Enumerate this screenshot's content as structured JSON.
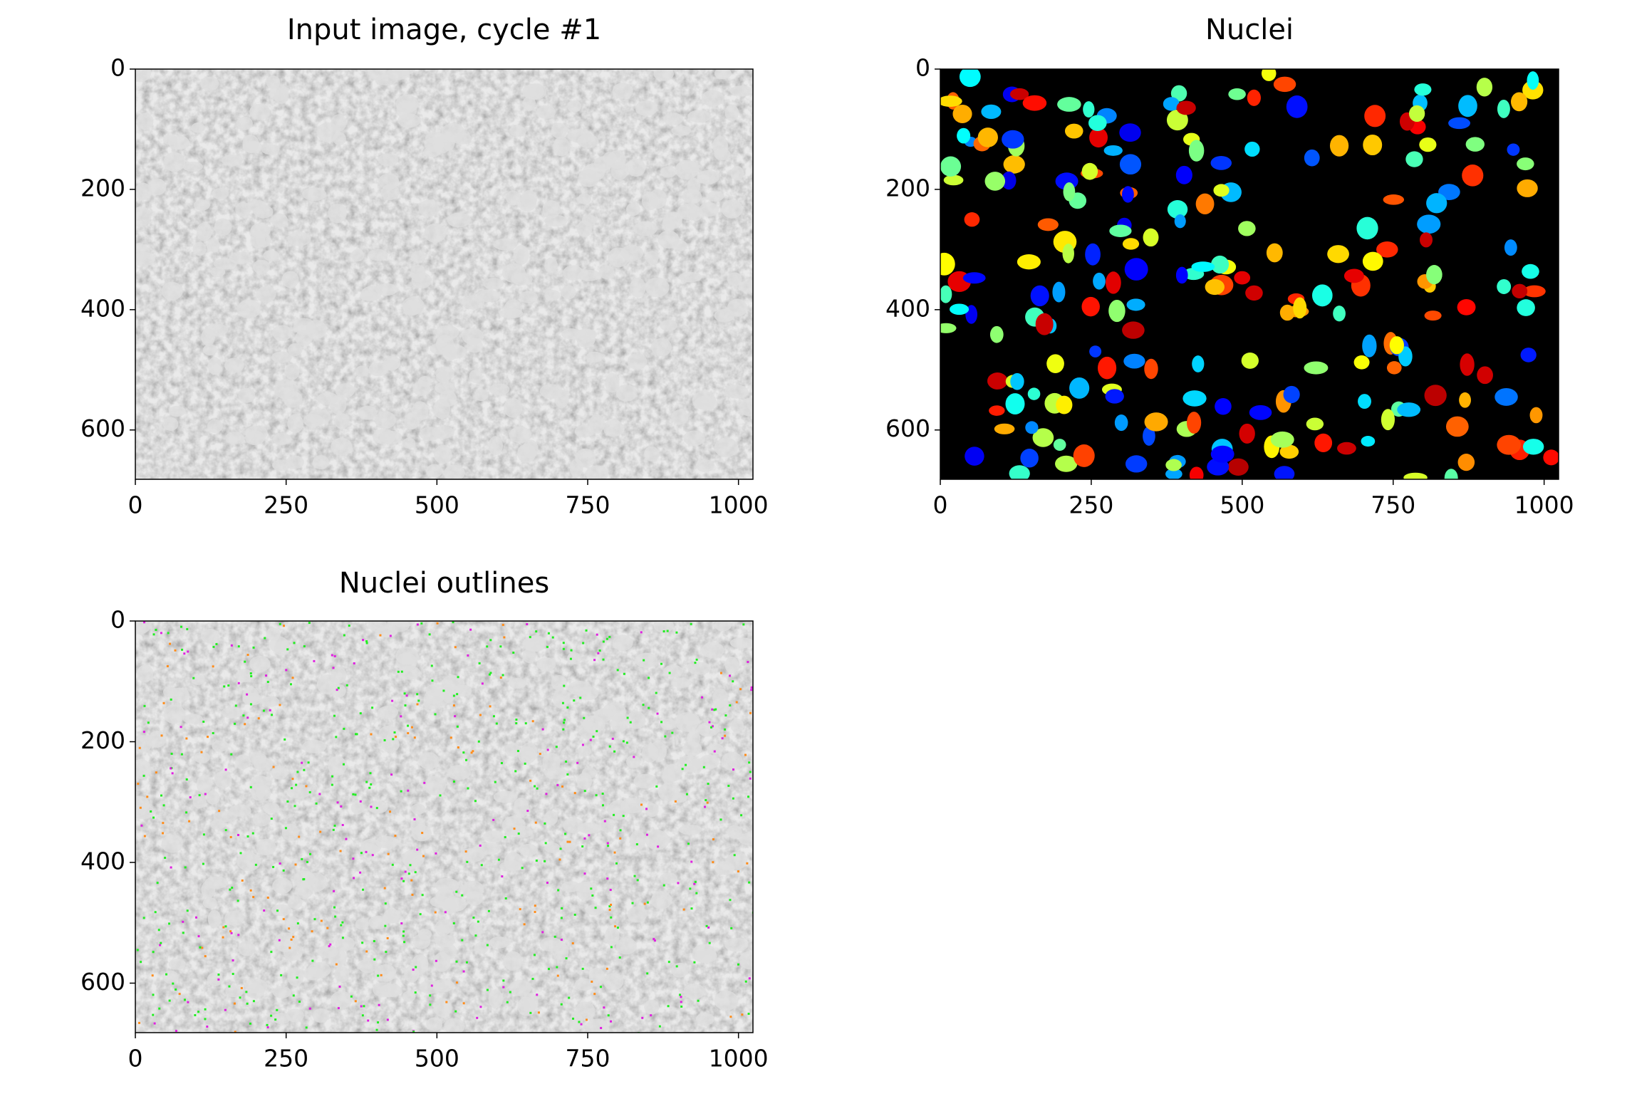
{
  "chart_data": [
    {
      "type": "image",
      "title": "Input image, cycle #1",
      "cmap": "gray",
      "xlim": [
        0,
        1024
      ],
      "ylim": [
        682,
        0
      ],
      "xticks": [
        0,
        250,
        500,
        750,
        1000
      ],
      "yticks": [
        0,
        200,
        400,
        600
      ]
    },
    {
      "type": "image",
      "title": "Nuclei",
      "cmap": "jet",
      "xlim": [
        0,
        1024
      ],
      "ylim": [
        682,
        0
      ],
      "xticks": [
        0,
        250,
        500,
        750,
        1000
      ],
      "yticks": [
        0,
        200,
        400,
        600
      ]
    },
    {
      "type": "image",
      "title": "Nuclei outlines",
      "cmap": "gray",
      "xlim": [
        0,
        1024
      ],
      "ylim": [
        682,
        0
      ],
      "xticks": [
        0,
        250,
        500,
        750,
        1000
      ],
      "yticks": [
        0,
        200,
        400,
        600
      ]
    }
  ]
}
